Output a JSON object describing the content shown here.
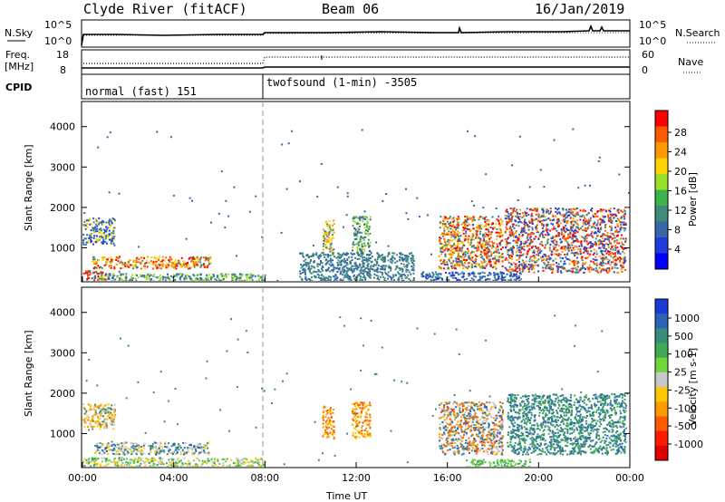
{
  "header": {
    "left_title": "Clyde River (fitACF)",
    "center_title": "Beam 06",
    "right_title": "16/Jan/2019"
  },
  "panels": {
    "nsky": {
      "label": "N.Sky",
      "left_ticks": [
        "10^5",
        "10^0"
      ],
      "right_label": "N.Search",
      "right_ticks": [
        "10^5",
        "10^0"
      ]
    },
    "freq": {
      "label_line1": "Freq.",
      "label_line2": "[MHz]",
      "left_ticks": [
        "18",
        "8"
      ],
      "right_label": "Nave",
      "right_ticks": [
        "60",
        "0"
      ]
    },
    "cpid": {
      "label": "CPID",
      "segments": [
        {
          "name": "normal (fast) 151",
          "start_hour": 0
        },
        {
          "name": "twofsound (1-min) -3505",
          "start_hour": 8
        }
      ]
    }
  },
  "colorbars": {
    "power": {
      "label": "Power [dB]",
      "ticks": [
        "28",
        "24",
        "20",
        "16",
        "12",
        "8",
        "4"
      ],
      "colors": [
        "#ff0000",
        "#ff5a00",
        "#ff9b00",
        "#ffd400",
        "#9be02b",
        "#3db34d",
        "#3f8a78",
        "#3667a8",
        "#1e3ce0",
        "#0000ff"
      ]
    },
    "velocity": {
      "label": "Velocity [m s-1]",
      "ticks": [
        "1000",
        "500",
        "100",
        "25",
        "-25",
        "-100",
        "-500",
        "-1000"
      ],
      "colors": [
        "#1a3ad9",
        "#2b64b6",
        "#3a8c7a",
        "#3faa55",
        "#6fd63c",
        "#c8c8c8",
        "#ffc800",
        "#ff9b00",
        "#ff5a00",
        "#ff1a00",
        "#e00000"
      ]
    }
  },
  "chart_data": [
    {
      "type": "heatmap",
      "title": "Power",
      "ylabel": "Slant Range [km]",
      "ylim": [
        180,
        4600
      ],
      "yticks": [
        1000,
        2000,
        3000,
        4000
      ],
      "xlim": [
        0,
        24
      ],
      "xticks": [
        "00:00",
        "04:00",
        "08:00",
        "12:00",
        "16:00",
        "20:00",
        "00:00"
      ],
      "blobs": [
        {
          "x": [
            0.0,
            1.4
          ],
          "y": [
            1100,
            1750
          ],
          "colors": [
            "#3667a8",
            "#3f8a78",
            "#ffd400",
            "#1e3ce0"
          ]
        },
        {
          "x": [
            0.4,
            5.6
          ],
          "y": [
            500,
            800
          ],
          "colors": [
            "#ff9b00",
            "#ff5a00",
            "#ffd400",
            "#3f8a78",
            "#ff0000"
          ]
        },
        {
          "x": [
            0.0,
            1.0
          ],
          "y": [
            180,
            450
          ],
          "colors": [
            "#ff0000",
            "#ff5a00",
            "#3f8a78"
          ]
        },
        {
          "x": [
            0.5,
            8.0
          ],
          "y": [
            180,
            380
          ],
          "colors": [
            "#3f8a78",
            "#3667a8",
            "#9be02b"
          ]
        },
        {
          "x": [
            10.5,
            11.0
          ],
          "y": [
            900,
            1700
          ],
          "colors": [
            "#ff9b00",
            "#3f8a78",
            "#ffd400"
          ]
        },
        {
          "x": [
            11.8,
            12.6
          ],
          "y": [
            900,
            1800
          ],
          "colors": [
            "#3f8a78",
            "#3667a8",
            "#9be02b"
          ]
        },
        {
          "x": [
            9.5,
            14.5
          ],
          "y": [
            200,
            900
          ],
          "colors": [
            "#3667a8",
            "#3f8a78"
          ]
        },
        {
          "x": [
            15.6,
            18.4
          ],
          "y": [
            500,
            1800
          ],
          "colors": [
            "#ff0000",
            "#ff5a00",
            "#ff9b00",
            "#ffd400",
            "#3f8a78",
            "#3667a8"
          ]
        },
        {
          "x": [
            18.5,
            23.8
          ],
          "y": [
            400,
            2000
          ],
          "colors": [
            "#ff0000",
            "#ff5a00",
            "#ff9b00",
            "#3f8a78",
            "#3667a8",
            "#1e3ce0"
          ]
        },
        {
          "x": [
            14.8,
            19.2
          ],
          "y": [
            180,
            420
          ],
          "colors": [
            "#3667a8",
            "#3f8a78",
            "#1e3ce0"
          ]
        }
      ]
    },
    {
      "type": "heatmap",
      "title": "Velocity",
      "ylabel": "Slant Range [km]",
      "ylim": [
        180,
        4600
      ],
      "yticks": [
        1000,
        2000,
        3000,
        4000
      ],
      "xlim": [
        0,
        24
      ],
      "xticks": [
        "00:00",
        "04:00",
        "08:00",
        "12:00",
        "16:00",
        "20:00",
        "00:00"
      ],
      "xlabel": "Time UT",
      "blobs": [
        {
          "x": [
            0.0,
            1.4
          ],
          "y": [
            1100,
            1750
          ],
          "colors": [
            "#ff9b00",
            "#ffc800",
            "#c8c8c8",
            "#3a8c7a"
          ]
        },
        {
          "x": [
            0.4,
            5.6
          ],
          "y": [
            500,
            800
          ],
          "colors": [
            "#3a8c7a",
            "#c8c8c8",
            "#ffc800",
            "#2b64b6"
          ]
        },
        {
          "x": [
            0.0,
            8.0
          ],
          "y": [
            180,
            420
          ],
          "colors": [
            "#6fd63c",
            "#ffc800",
            "#c8c8c8",
            "#3faa55"
          ]
        },
        {
          "x": [
            10.5,
            11.0
          ],
          "y": [
            900,
            1700
          ],
          "colors": [
            "#ff9b00",
            "#ff5a00",
            "#ffc800"
          ]
        },
        {
          "x": [
            11.8,
            12.6
          ],
          "y": [
            900,
            1800
          ],
          "colors": [
            "#ff9b00",
            "#ffc800",
            "#ff5a00"
          ]
        },
        {
          "x": [
            15.6,
            18.4
          ],
          "y": [
            500,
            1800
          ],
          "colors": [
            "#ff5a00",
            "#ff9b00",
            "#c8c8c8",
            "#2b64b6",
            "#3a8c7a"
          ]
        },
        {
          "x": [
            18.6,
            23.8
          ],
          "y": [
            500,
            2000
          ],
          "colors": [
            "#3a8c7a",
            "#3faa55",
            "#2b64b6",
            "#3a8c7a"
          ]
        },
        {
          "x": [
            16.8,
            19.6
          ],
          "y": [
            180,
            380
          ],
          "colors": [
            "#6fd63c",
            "#3faa55"
          ]
        }
      ]
    }
  ]
}
